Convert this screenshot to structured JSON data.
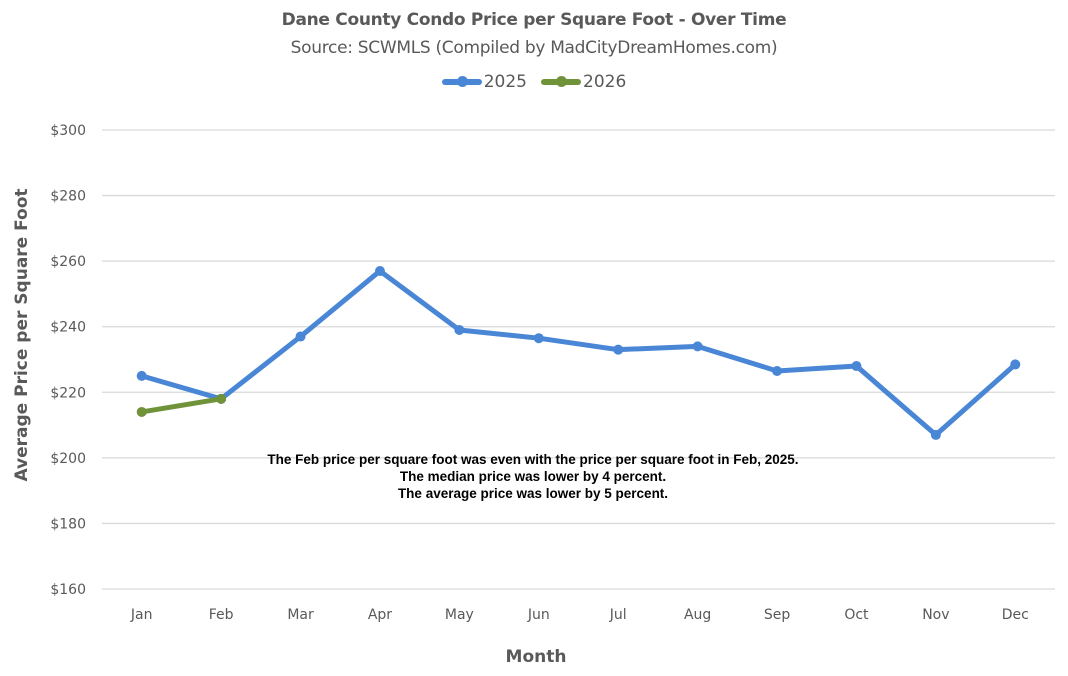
{
  "chart_data": {
    "type": "line",
    "title": "Dane County Condo Price per Square Foot - Over Time",
    "subtitle": "Source: SCWMLS (Compiled by MadCityDreamHomes.com)",
    "xlabel": "Month",
    "ylabel": "Average Price per Square Foot",
    "categories": [
      "Jan",
      "Feb",
      "Mar",
      "Apr",
      "May",
      "Jun",
      "Jul",
      "Aug",
      "Sep",
      "Oct",
      "Nov",
      "Dec"
    ],
    "series": [
      {
        "name": "2025",
        "color": "#4a86d6",
        "values": [
          225,
          218,
          237,
          257,
          239,
          236.5,
          233,
          234,
          226.5,
          228,
          207,
          228.5
        ]
      },
      {
        "name": "2026",
        "color": "#70933a",
        "values": [
          214,
          218
        ]
      }
    ],
    "ylim": [
      160,
      300
    ],
    "yticks": [
      160,
      180,
      200,
      220,
      240,
      260,
      280,
      300
    ],
    "ytick_labels": [
      "$160",
      "$180",
      "$200",
      "$220",
      "$240",
      "$260",
      "$280",
      "$300"
    ],
    "grid": true,
    "legend_position": "top",
    "annotations": [
      "The Feb price per square foot was even with the price per square foot in Feb, 2025.",
      "The median price was lower by 4 percent.",
      "The average price was lower by 5 percent."
    ]
  }
}
